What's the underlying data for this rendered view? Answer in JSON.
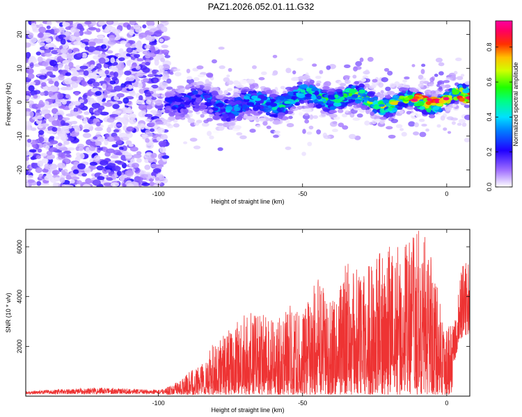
{
  "figure_title": "PAZ1.2026.052.01.11.G32",
  "chart_data": [
    {
      "type": "heatmap",
      "title": "PAZ1.2026.052.01.11.G32",
      "xlabel": "Height of straight line (km)",
      "ylabel": "Frequency (Hz)",
      "xlim": [
        -146,
        8
      ],
      "ylim": [
        -25,
        24
      ],
      "xticks": [
        -100,
        -50,
        0
      ],
      "xtick_labels": [
        "-100",
        "-50",
        "0"
      ],
      "yticks": [
        -20,
        -10,
        0,
        10,
        20
      ],
      "ytick_labels": [
        "-20",
        "-10",
        "0",
        "10",
        "20"
      ],
      "colorbar": {
        "label": "Normalized spectral amplitude",
        "range": [
          0,
          0.95
        ],
        "ticks": [
          0,
          0.2,
          0.4,
          0.6,
          0.8
        ],
        "tick_labels": [
          "0.0",
          "0.2",
          "0.4",
          "0.6",
          "0.8"
        ],
        "colormap": "rainbow (white-violet-blue-cyan-green-yellow-red-magenta)"
      },
      "description_of_signal": {
        "noise_region_km": [
          -146,
          -97
        ],
        "signal_center_freq_start_hz": 0,
        "signal_center_freq_end_hz": 1
      }
    },
    {
      "type": "line",
      "xlabel": "Height of straight line (km)",
      "ylabel": "SNR (10 * v/v)",
      "xlim": [
        -146,
        8
      ],
      "ylim": [
        0,
        6700
      ],
      "xticks": [
        -100,
        -50,
        0
      ],
      "xtick_labels": [
        "-100",
        "-50",
        "0"
      ],
      "yticks": [
        2000,
        4000,
        6000
      ],
      "ytick_labels": [
        "2000",
        "4000",
        "6000"
      ],
      "series": [
        {
          "name": "SNR",
          "color": "#ee3333",
          "envelope_x": [
            -146,
            -120,
            -100,
            -95,
            -90,
            -85,
            -80,
            -75,
            -70,
            -65,
            -60,
            -55,
            -50,
            -45,
            -40,
            -35,
            -30,
            -25,
            -20,
            -15,
            -10,
            -5,
            -3,
            0,
            3,
            5,
            8
          ],
          "envelope_max": [
            200,
            350,
            250,
            450,
            900,
            1400,
            2300,
            2700,
            3300,
            3400,
            3000,
            3700,
            3300,
            4800,
            4000,
            5400,
            5200,
            5600,
            6300,
            6200,
            6700,
            6200,
            4200,
            3000,
            3200,
            5200,
            5600
          ]
        }
      ]
    }
  ]
}
